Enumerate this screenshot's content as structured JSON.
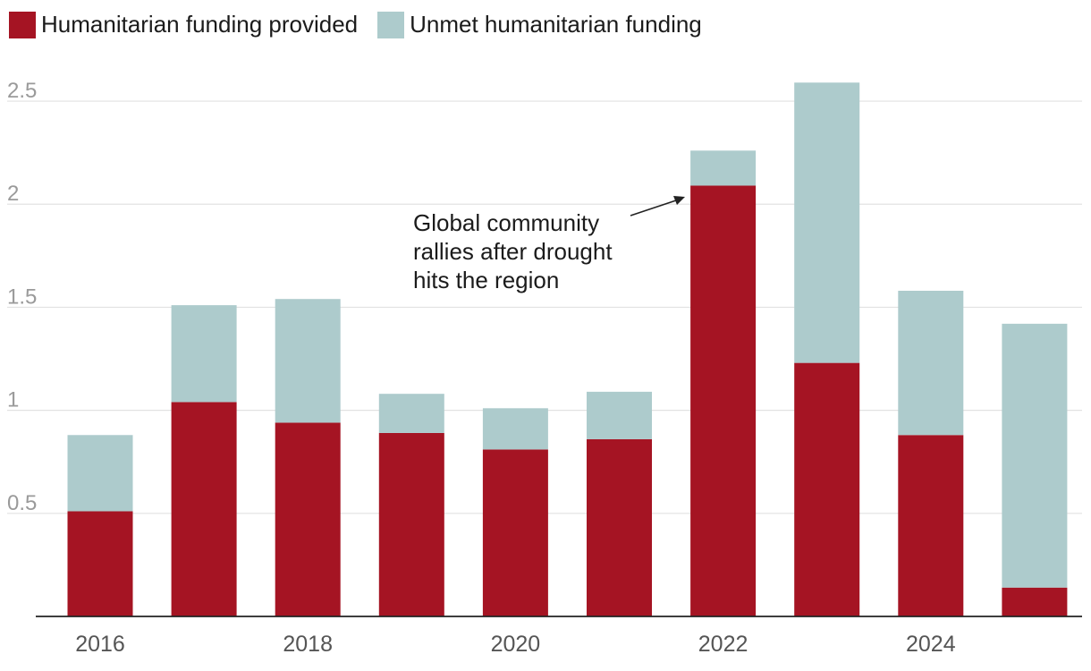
{
  "chart_data": {
    "type": "bar",
    "stacked": true,
    "categories": [
      "2016",
      "2017",
      "2018",
      "2019",
      "2020",
      "2021",
      "2022",
      "2023",
      "2024",
      "2025"
    ],
    "series": [
      {
        "name": "Humanitarian funding provided",
        "color": "#a51423",
        "values": [
          0.51,
          1.04,
          0.94,
          0.89,
          0.81,
          0.86,
          2.09,
          1.23,
          0.88,
          0.14
        ]
      },
      {
        "name": "Unmet humanitarian funding",
        "color": "#adcbcc",
        "values": [
          0.37,
          0.47,
          0.6,
          0.19,
          0.2,
          0.23,
          0.17,
          1.36,
          0.7,
          1.28
        ]
      }
    ],
    "x_tick_labels": [
      "2016",
      "",
      "2018",
      "",
      "2020",
      "",
      "2022",
      "",
      "2024",
      ""
    ],
    "y_ticks": [
      0.5,
      1,
      1.5,
      2,
      2.5
    ],
    "y_tick_labels": [
      "0.5",
      "1",
      "1.5",
      "2",
      "2.5"
    ],
    "ylim": [
      0,
      2.6
    ],
    "grid": true,
    "legend_position": "top-left",
    "annotation": {
      "lines": [
        "Global community",
        "rallies after drought",
        "hits the region"
      ],
      "target_category": "2022"
    }
  }
}
